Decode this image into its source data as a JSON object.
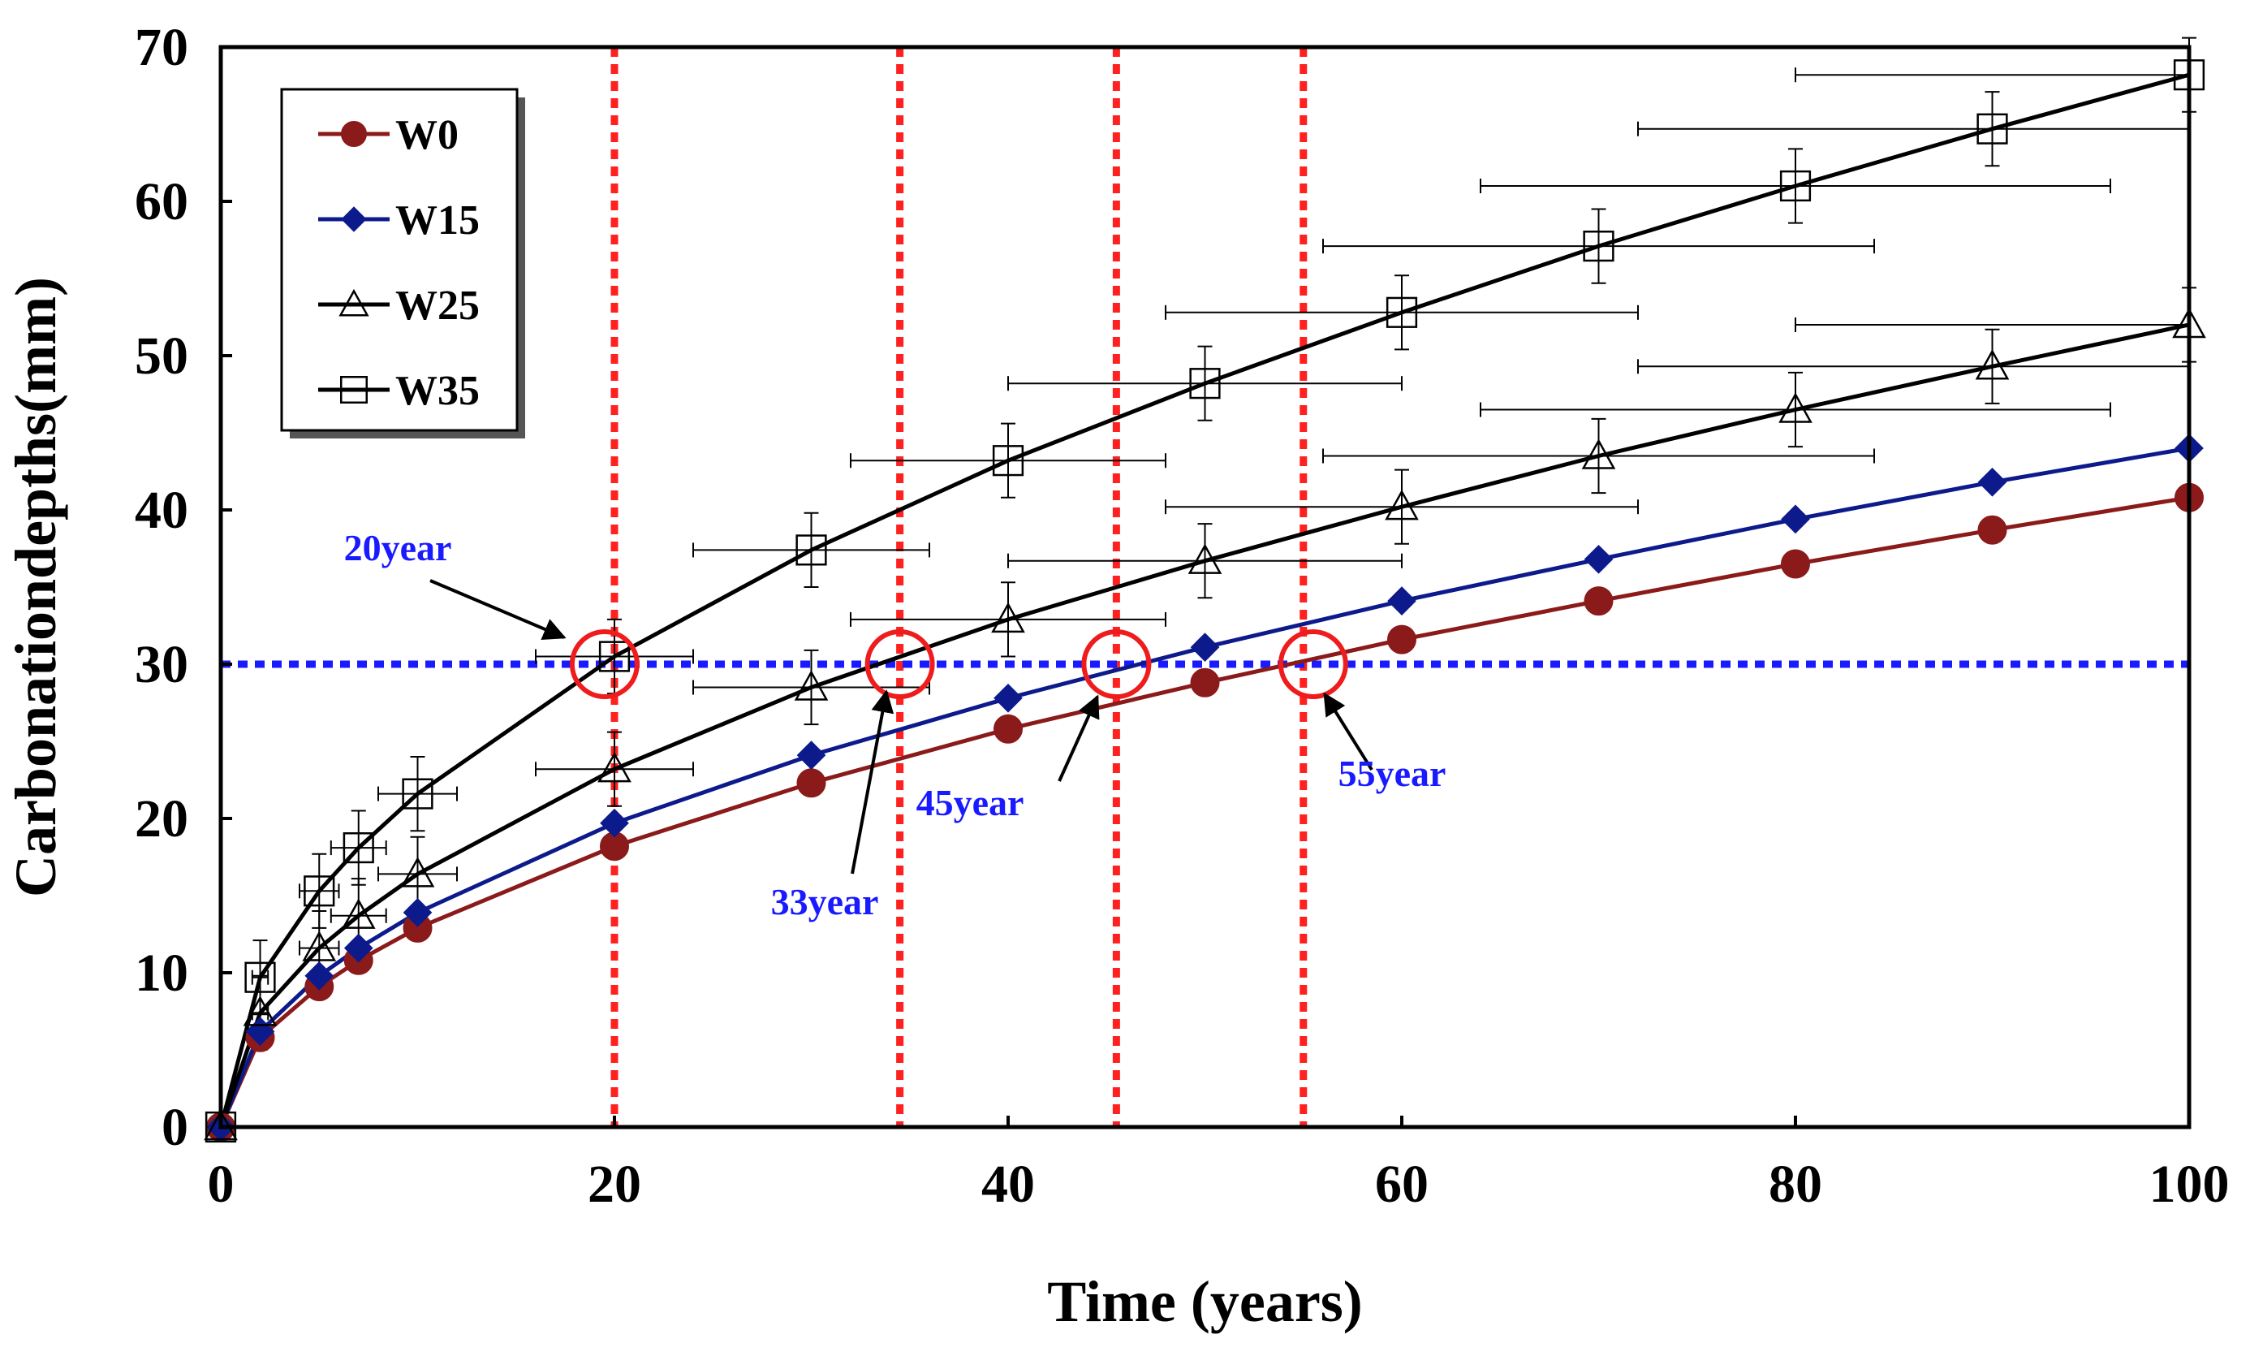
{
  "chart_data": {
    "type": "line",
    "title": "",
    "xlabel": "Time (years)",
    "ylabel": "Carbonationdepths(mm)",
    "xlim": [
      0,
      100
    ],
    "ylim": [
      0,
      70
    ],
    "xticks": [
      0,
      20,
      40,
      60,
      80,
      100
    ],
    "yticks": [
      0,
      10,
      20,
      30,
      40,
      50,
      60,
      70
    ],
    "grid": false,
    "legend_position": "top-left",
    "x": [
      0,
      2,
      5,
      7,
      10,
      20,
      30,
      40,
      50,
      60,
      70,
      80,
      90,
      100
    ],
    "series": [
      {
        "name": "W0",
        "marker": "circle",
        "color": "#8b1a1a",
        "values": [
          0,
          5.8,
          9.1,
          10.8,
          12.9,
          18.2,
          22.3,
          25.8,
          28.8,
          31.6,
          34.1,
          36.5,
          38.7,
          40.8
        ]
      },
      {
        "name": "W15",
        "marker": "diamond",
        "color": "#0d1a8c",
        "values": [
          0,
          6.2,
          9.8,
          11.6,
          13.9,
          19.7,
          24.1,
          27.8,
          31.1,
          34.1,
          36.8,
          39.4,
          41.8,
          44.0
        ]
      },
      {
        "name": "W25",
        "marker": "triangle",
        "color": "#000000",
        "values": [
          0,
          7.4,
          11.6,
          13.7,
          16.4,
          23.2,
          28.5,
          32.9,
          36.7,
          40.2,
          43.5,
          46.5,
          49.3,
          52.0
        ]
      },
      {
        "name": "W35",
        "marker": "square",
        "color": "#000000",
        "values": [
          0,
          9.7,
          15.3,
          18.1,
          21.6,
          30.5,
          37.4,
          43.2,
          48.2,
          52.8,
          57.1,
          61.0,
          64.7,
          68.2
        ]
      }
    ],
    "error_bars": {
      "y_error": 2.4,
      "x_error_fraction": 0.2
    },
    "reference_lines": {
      "horizontal": {
        "y": 30,
        "color": "#1a1aff"
      },
      "vertical": {
        "x": [
          20,
          34.5,
          45.5,
          55
        ],
        "color": "#ff2020"
      }
    },
    "annotations": [
      {
        "text": "20year",
        "circle_x": 19.5,
        "circle_y": 30
      },
      {
        "text": "33year",
        "circle_x": 34.5,
        "circle_y": 30
      },
      {
        "text": "45year",
        "circle_x": 45.5,
        "circle_y": 30
      },
      {
        "text": "55year",
        "circle_x": 55.5,
        "circle_y": 30
      }
    ],
    "annotation_color": "#1a1aff",
    "highlight_circle_color": "#ee1c1c"
  }
}
